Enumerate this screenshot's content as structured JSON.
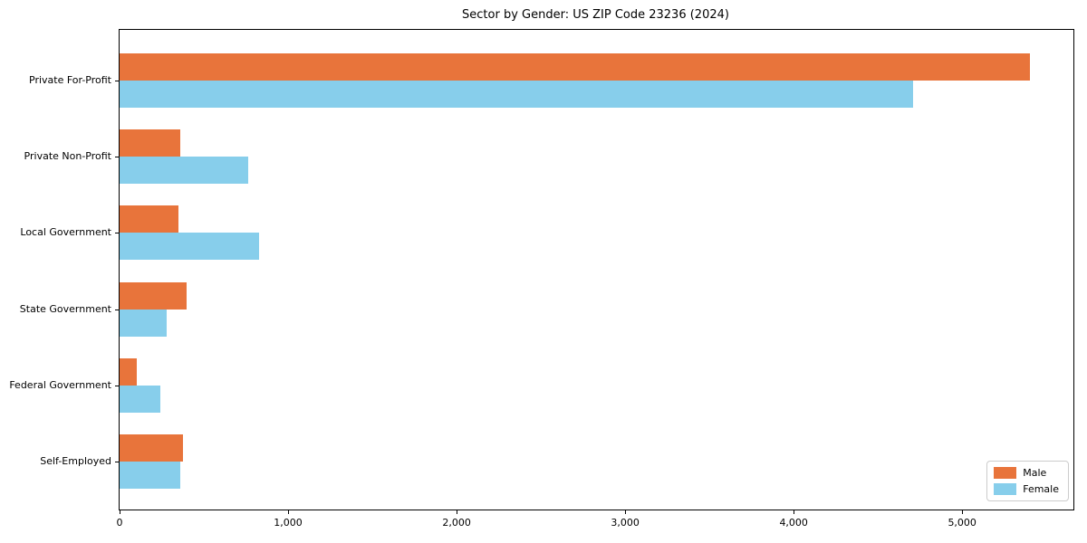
{
  "title": "Sector by Gender: US ZIP Code 23236 (2024)",
  "chart_data": {
    "type": "bar",
    "orientation": "horizontal",
    "title": "Sector by Gender: US ZIP Code 23236 (2024)",
    "xlabel": "",
    "ylabel": "",
    "categories": [
      "Private For-Profit",
      "Private Non-Profit",
      "Local Government",
      "State Government",
      "Federal Government",
      "Self-Employed"
    ],
    "series": [
      {
        "name": "Male",
        "color": "#e8743b",
        "values": [
          5400,
          360,
          350,
          400,
          100,
          375
        ]
      },
      {
        "name": "Female",
        "color": "#87ceeb",
        "values": [
          4710,
          765,
          830,
          280,
          240,
          360
        ]
      }
    ],
    "xlim": [
      0,
      5660
    ],
    "xticks": [
      0,
      1000,
      2000,
      3000,
      4000,
      5000
    ],
    "xtick_labels": [
      "0",
      "1,000",
      "2,000",
      "3,000",
      "4,000",
      "5,000"
    ],
    "grid": false,
    "legend_position": "lower right"
  }
}
